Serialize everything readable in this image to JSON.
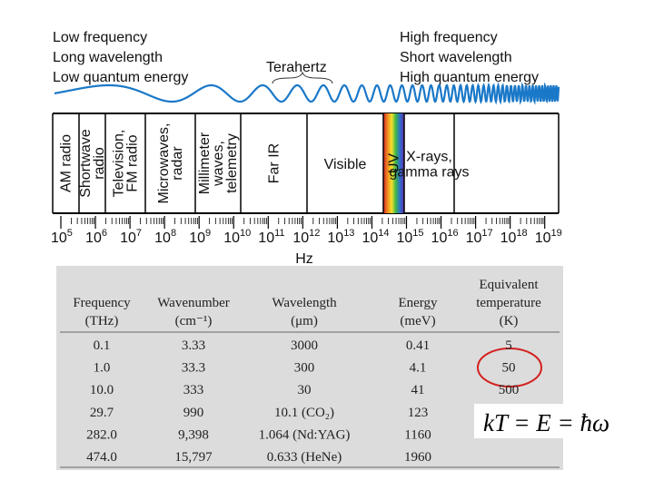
{
  "header": {
    "left": [
      "Low frequency",
      "Long wavelength",
      "Low quantum energy"
    ],
    "right": [
      "High frequency",
      "Short wavelength",
      "High quantum energy"
    ],
    "terahertz": "Terahertz"
  },
  "bands": [
    {
      "lines": [
        "AM radio"
      ]
    },
    {
      "lines": [
        "Shortwave",
        "radio"
      ]
    },
    {
      "lines": [
        "Television,",
        "FM radio"
      ]
    },
    {
      "lines": [
        "Microwaves,",
        "radar"
      ]
    },
    {
      "lines": [
        "Millimeter",
        "waves,",
        "telemetry"
      ]
    },
    {
      "lines": [
        "Far IR"
      ]
    },
    {
      "lines": [
        "Visible"
      ]
    },
    {
      "lines": [
        "UV"
      ]
    },
    {
      "lines": [
        "X-rays,",
        "gamma rays"
      ]
    }
  ],
  "axis": {
    "ticks": [
      {
        "base": "10",
        "exp": "5"
      },
      {
        "base": "10",
        "exp": "6"
      },
      {
        "base": "10",
        "exp": "7"
      },
      {
        "base": "10",
        "exp": "8"
      },
      {
        "base": "10",
        "exp": "9"
      },
      {
        "base": "10",
        "exp": "10"
      },
      {
        "base": "10",
        "exp": "11"
      },
      {
        "base": "10",
        "exp": "12"
      },
      {
        "base": "10",
        "exp": "13"
      },
      {
        "base": "10",
        "exp": "14"
      },
      {
        "base": "10",
        "exp": "15"
      },
      {
        "base": "10",
        "exp": "16"
      },
      {
        "base": "10",
        "exp": "17"
      },
      {
        "base": "10",
        "exp": "18"
      },
      {
        "base": "10",
        "exp": "19"
      }
    ],
    "unit": "Hz"
  },
  "table": {
    "headers": [
      [
        "Frequency",
        "(THz)"
      ],
      [
        "Wavenumber",
        "(cm⁻¹)"
      ],
      [
        "Wavelength",
        "(μm)"
      ],
      [
        "Energy",
        "(meV)"
      ],
      [
        "Equivalent",
        "temperature",
        "(K)"
      ]
    ],
    "rows": [
      [
        "0.1",
        "3.33",
        "3000",
        "0.41",
        "5"
      ],
      [
        "1.0",
        "33.3",
        "300",
        "4.1",
        "50"
      ],
      [
        "10.0",
        "333",
        "30",
        "41",
        "500"
      ],
      [
        "29.7",
        "990",
        "10.1 (CO₂)",
        "123",
        ""
      ],
      [
        "282.0",
        "9,398",
        "1.064 (Nd:YAG)",
        "1160",
        ""
      ],
      [
        "474.0",
        "15,797",
        "0.633 (HeNe)",
        "1960",
        ""
      ]
    ]
  },
  "equation": "kT = E = ħω"
}
